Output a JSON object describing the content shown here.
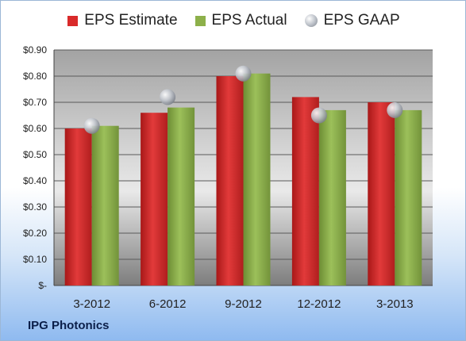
{
  "company_label": "IPG Photonics",
  "colors": {
    "estimate": "#d92a2a",
    "actual": "#8db04a",
    "gaap": "#b9bec6"
  },
  "legend": {
    "estimate": "EPS Estimate",
    "actual": "EPS Actual",
    "gaap": "EPS GAAP"
  },
  "chart_data": {
    "type": "bar",
    "categories": [
      "3-2012",
      "6-2012",
      "9-2012",
      "12-2012",
      "3-2013"
    ],
    "series": [
      {
        "name": "EPS Estimate",
        "values": [
          0.6,
          0.66,
          0.8,
          0.72,
          0.7
        ]
      },
      {
        "name": "EPS Actual",
        "values": [
          0.61,
          0.68,
          0.81,
          0.67,
          0.67
        ]
      },
      {
        "name": "EPS GAAP",
        "type": "scatter",
        "values": [
          0.61,
          0.72,
          0.81,
          0.65,
          0.67
        ]
      }
    ],
    "ylim": [
      0,
      0.9
    ],
    "yticks": [
      0,
      0.1,
      0.2,
      0.3,
      0.4,
      0.5,
      0.6,
      0.7,
      0.8,
      0.9
    ],
    "ytick_labels": [
      "$-",
      "$0.10",
      "$0.20",
      "$0.30",
      "$0.40",
      "$0.50",
      "$0.60",
      "$0.70",
      "$0.80",
      "$0.90"
    ],
    "grid": true,
    "legend_position": "top"
  }
}
